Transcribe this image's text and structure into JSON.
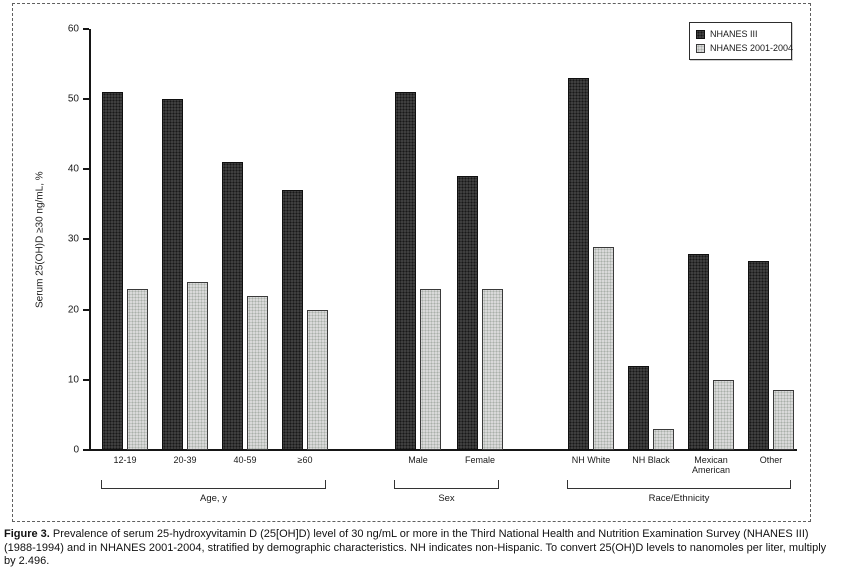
{
  "figure": {
    "caption_label": "Figure 3.",
    "caption_text": " Prevalence of serum 25-hydroxyvitamin D (25[OH]D) level of 30 ng/mL or more in the Third National Health and Nutrition Examination Survey (NHANES III) (1988-1994) and in NHANES 2001-2004, stratified by demographic characteristics. NH indicates non-Hispanic. To convert 25(OH)D levels to nanomoles per liter, multiply by 2.496."
  },
  "chart_data": {
    "type": "bar",
    "title": "",
    "xlabel": "",
    "ylabel": "Serum 25(OH)D ≥30 ng/mL, %",
    "ylim": [
      0,
      60
    ],
    "yticks": [
      0,
      10,
      20,
      30,
      40,
      50,
      60
    ],
    "grid": false,
    "legend_position": "top-right",
    "legend": [
      {
        "name": "NHANES III",
        "color": "#3f3f3f"
      },
      {
        "name": "NHANES 2001-2004",
        "color": "#d9d9d9"
      }
    ],
    "groups": [
      {
        "label": "Age, y",
        "categories": [
          "12-19",
          "20-39",
          "40-59",
          "≥60"
        ],
        "series": [
          {
            "name": "NHANES III",
            "values": [
              51,
              50,
              41,
              37
            ]
          },
          {
            "name": "NHANES 2001-2004",
            "values": [
              23,
              24,
              22,
              20
            ]
          }
        ]
      },
      {
        "label": "Sex",
        "categories": [
          "Male",
          "Female"
        ],
        "series": [
          {
            "name": "NHANES III",
            "values": [
              51,
              39
            ]
          },
          {
            "name": "NHANES 2001-2004",
            "values": [
              23,
              23
            ]
          }
        ]
      },
      {
        "label": "Race/Ethnicity",
        "categories": [
          "NH White",
          "NH Black",
          "Mexican American",
          "Other"
        ],
        "series": [
          {
            "name": "NHANES III",
            "values": [
              53,
              12,
              28,
              27
            ]
          },
          {
            "name": "NHANES 2001-2004",
            "values": [
              29,
              3,
              10,
              8.5
            ]
          }
        ]
      }
    ]
  }
}
